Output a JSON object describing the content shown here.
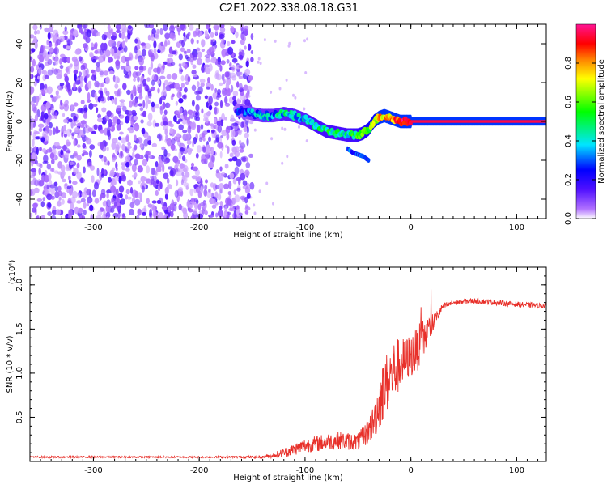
{
  "title": "C2E1.2022.338.08.18.G31",
  "chart_data": [
    {
      "type": "heatmap",
      "xlabel": "Height of straight line (km)",
      "ylabel": "Frequency (Hz)",
      "xlim": [
        -360,
        128
      ],
      "ylim": [
        -50,
        50
      ],
      "x_ticks": [
        -300,
        -200,
        -100,
        0,
        100
      ],
      "x_tick_labels": [
        "-300",
        "-200",
        "-100",
        "0",
        "100"
      ],
      "y_ticks": [
        -40,
        -20,
        0,
        20,
        40
      ],
      "y_tick_labels": [
        "-40",
        "-20",
        "0",
        "20",
        "40"
      ],
      "colorbar": {
        "label": "Normalized spectral amplitude",
        "range": [
          0,
          1
        ],
        "ticks": [
          0.0,
          0.2,
          0.4,
          0.6,
          0.8
        ],
        "tick_labels": [
          "0.0",
          "0.2",
          "0.4",
          "0.6",
          "0.8"
        ],
        "colors": [
          "#ffffff",
          "#9b30ff",
          "#0000ff",
          "#00e5ff",
          "#00ff00",
          "#ffff00",
          "#ff8000",
          "#ff0000",
          "#ff1493"
        ]
      },
      "noise_region_x": [
        -360,
        -150
      ],
      "track": {
        "x": [
          -165,
          -150,
          -140,
          -130,
          -120,
          -110,
          -100,
          -90,
          -80,
          -70,
          -60,
          -50,
          -45,
          -40,
          -35,
          -30,
          -25,
          -20,
          -15,
          -10,
          -5,
          0,
          20,
          60,
          100,
          128
        ],
        "f": [
          6,
          4,
          3,
          3,
          4,
          3,
          1,
          -2,
          -5,
          -6,
          -7,
          -7,
          -6,
          -4,
          0,
          2,
          3,
          2,
          1,
          0,
          0,
          0,
          0,
          0,
          0,
          0
        ],
        "amp": [
          0.15,
          0.25,
          0.3,
          0.3,
          0.35,
          0.35,
          0.35,
          0.4,
          0.4,
          0.4,
          0.4,
          0.45,
          0.5,
          0.55,
          0.6,
          0.7,
          0.7,
          0.75,
          0.8,
          0.85,
          0.9,
          0.95,
          0.95,
          0.95,
          0.95,
          0.95
        ]
      },
      "secondary_track": {
        "x": [
          -60,
          -55,
          -50,
          -45,
          -40
        ],
        "f": [
          -14,
          -16,
          -17,
          -18,
          -20
        ]
      }
    },
    {
      "type": "line",
      "xlabel": "Height of straight line (km)",
      "ylabel": "SNR (10 * v/v)",
      "y_multiplier_label": "(x10⁴)",
      "xlim": [
        -360,
        128
      ],
      "ylim": [
        0,
        2.2
      ],
      "x_ticks": [
        -300,
        -200,
        -100,
        0,
        100
      ],
      "x_tick_labels": [
        "-300",
        "-200",
        "-100",
        "0",
        "100"
      ],
      "y_ticks": [
        0.5,
        1.0,
        1.5,
        2.0
      ],
      "y_tick_labels": [
        "0.5",
        "1.0",
        "1.5",
        "2.0"
      ],
      "series": [
        {
          "color": "#e8302a",
          "x": [
            -360,
            -300,
            -200,
            -140,
            -130,
            -120,
            -110,
            -100,
            -90,
            -80,
            -70,
            -60,
            -50,
            -45,
            -40,
            -35,
            -30,
            -25,
            -20,
            -15,
            -10,
            -5,
            0,
            5,
            10,
            15,
            20,
            25,
            30,
            40,
            60,
            80,
            100,
            128
          ],
          "mean": [
            0.05,
            0.05,
            0.05,
            0.05,
            0.07,
            0.1,
            0.14,
            0.18,
            0.2,
            0.22,
            0.24,
            0.23,
            0.22,
            0.28,
            0.35,
            0.45,
            0.65,
            0.85,
            0.95,
            1.05,
            1.1,
            1.15,
            1.2,
            1.25,
            1.35,
            1.45,
            1.55,
            1.65,
            1.75,
            1.8,
            1.82,
            1.8,
            1.78,
            1.76
          ],
          "noise": [
            0.01,
            0.01,
            0.01,
            0.015,
            0.03,
            0.05,
            0.07,
            0.08,
            0.09,
            0.1,
            0.1,
            0.1,
            0.1,
            0.12,
            0.15,
            0.2,
            0.3,
            0.35,
            0.35,
            0.35,
            0.3,
            0.25,
            0.25,
            0.25,
            0.25,
            0.2,
            0.12,
            0.07,
            0.04,
            0.03,
            0.03,
            0.03,
            0.03,
            0.03
          ]
        }
      ]
    }
  ]
}
